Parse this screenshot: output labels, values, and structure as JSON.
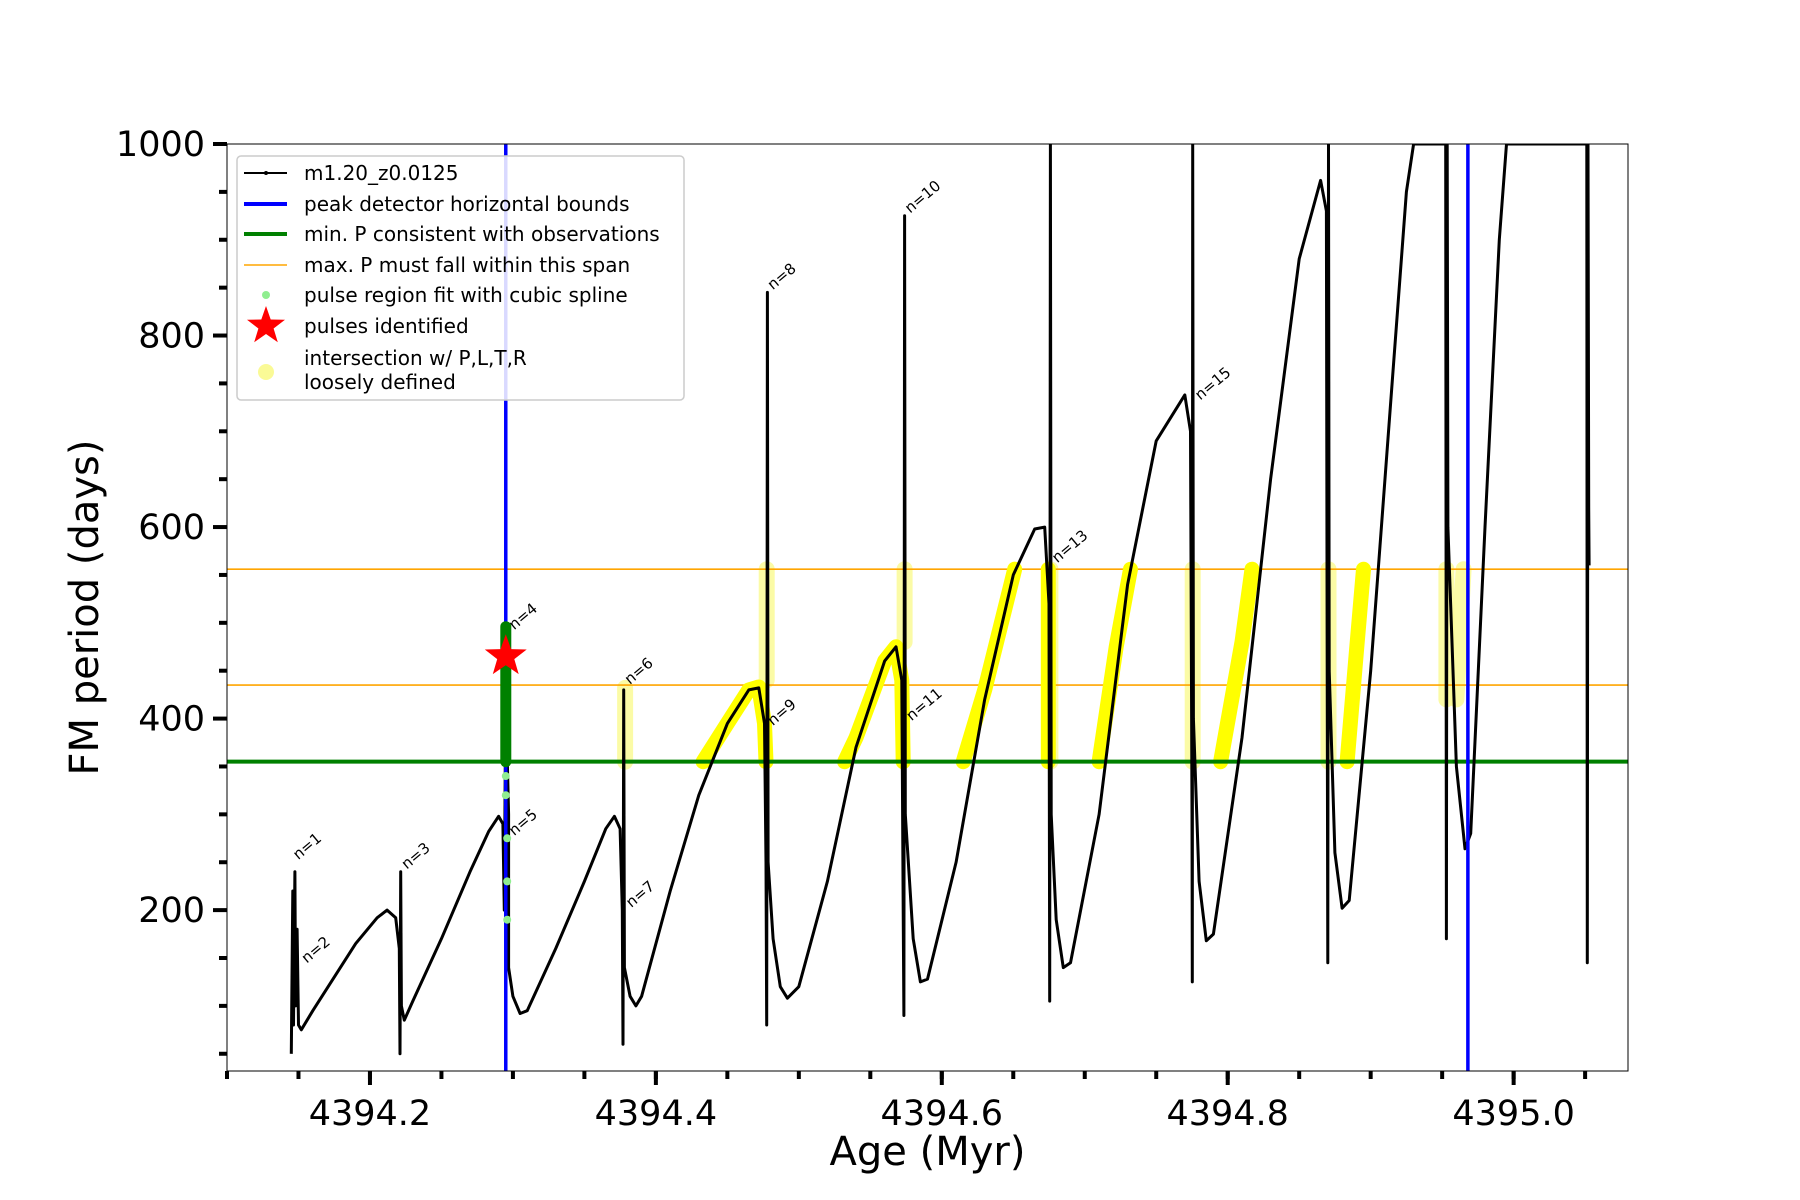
{
  "chart_data": {
    "type": "line",
    "xlabel": "Age (Myr)",
    "ylabel": "FM period (days)",
    "xlim": [
      4394.1,
      4395.08
    ],
    "ylim": [
      32,
      1000
    ],
    "x_ticks": [
      {
        "v": 4394.2,
        "label": "4394.2"
      },
      {
        "v": 4394.4,
        "label": "4394.4"
      },
      {
        "v": 4394.6,
        "label": "4394.6"
      },
      {
        "v": 4394.8,
        "label": "4394.8"
      },
      {
        "v": 4395.0,
        "label": "4395.0"
      }
    ],
    "y_ticks": [
      {
        "v": 200,
        "label": "200"
      },
      {
        "v": 400,
        "label": "400"
      },
      {
        "v": 600,
        "label": "600"
      },
      {
        "v": 800,
        "label": "800"
      },
      {
        "v": 1000,
        "label": "1000"
      }
    ],
    "x_minor_step": 0.05,
    "y_minor_step": 50,
    "legend_position": "top-left",
    "legend": [
      {
        "key": "track",
        "label": "m1.20_z0.0125"
      },
      {
        "key": "bounds",
        "label": "peak detector horizontal bounds"
      },
      {
        "key": "minP",
        "label": "min. P consistent with observations"
      },
      {
        "key": "maxP",
        "label": "max. P must fall within this span"
      },
      {
        "key": "spline",
        "label": "pulse region fit with cubic spline"
      },
      {
        "key": "pulses",
        "label": "pulses identified"
      },
      {
        "key": "intersect",
        "label": "intersection w/ P,L,T,R\nloosely defined"
      }
    ],
    "colors": {
      "track": "#000000",
      "bounds": "#0000ff",
      "minP": "#008000",
      "maxP": "#ffa500",
      "spline": "#90ee90",
      "pulses": "#ff0000",
      "intersect": "#ffff00",
      "intersect_loose": "#fafa96"
    },
    "vertical_bounds_x": [
      4394.295,
      4394.968
    ],
    "min_P": 355,
    "max_P_span": [
      435,
      556
    ],
    "track_points": [
      [
        4394.145,
        50
      ],
      [
        4394.146,
        220
      ],
      [
        4394.1465,
        80
      ],
      [
        4394.1475,
        240
      ],
      [
        4394.148,
        100
      ],
      [
        4394.149,
        180
      ],
      [
        4394.15,
        80
      ],
      [
        4394.152,
        75
      ],
      [
        4394.16,
        95
      ],
      [
        4394.175,
        130
      ],
      [
        4394.19,
        165
      ],
      [
        4394.205,
        192
      ],
      [
        4394.212,
        200
      ],
      [
        4394.218,
        192
      ],
      [
        4394.2205,
        160
      ],
      [
        4394.221,
        50
      ],
      [
        4394.2215,
        240
      ],
      [
        4394.222,
        100
      ],
      [
        4394.224,
        85
      ],
      [
        4394.23,
        105
      ],
      [
        4394.25,
        170
      ],
      [
        4394.27,
        240
      ],
      [
        4394.283,
        282
      ],
      [
        4394.29,
        298
      ],
      [
        4394.293,
        290
      ],
      [
        4394.294,
        200
      ],
      [
        4394.295,
        440
      ],
      [
        4394.2955,
        496
      ],
      [
        4394.296,
        360
      ],
      [
        4394.297,
        300
      ],
      [
        4394.297,
        140
      ],
      [
        4394.3,
        110
      ],
      [
        4394.305,
        92
      ],
      [
        4394.31,
        95
      ],
      [
        4394.33,
        160
      ],
      [
        4394.35,
        230
      ],
      [
        4394.365,
        285
      ],
      [
        4394.371,
        298
      ],
      [
        4394.375,
        285
      ],
      [
        4394.3765,
        200
      ],
      [
        4394.377,
        60
      ],
      [
        4394.3775,
        430
      ],
      [
        4394.378,
        140
      ],
      [
        4394.382,
        110
      ],
      [
        4394.386,
        100
      ],
      [
        4394.39,
        110
      ],
      [
        4394.41,
        220
      ],
      [
        4394.43,
        320
      ],
      [
        4394.45,
        395
      ],
      [
        4394.465,
        430
      ],
      [
        4394.472,
        432
      ],
      [
        4394.476,
        395
      ],
      [
        4394.477,
        250
      ],
      [
        4394.4775,
        80
      ],
      [
        4394.478,
        845
      ],
      [
        4394.4785,
        250
      ],
      [
        4394.482,
        170
      ],
      [
        4394.487,
        120
      ],
      [
        4394.492,
        108
      ],
      [
        4394.5,
        120
      ],
      [
        4394.52,
        230
      ],
      [
        4394.54,
        370
      ],
      [
        4394.56,
        460
      ],
      [
        4394.568,
        475
      ],
      [
        4394.572,
        440
      ],
      [
        4394.573,
        200
      ],
      [
        4394.5735,
        90
      ],
      [
        4394.574,
        925
      ],
      [
        4394.5745,
        300
      ],
      [
        4394.58,
        170
      ],
      [
        4394.585,
        125
      ],
      [
        4394.59,
        128
      ],
      [
        4394.61,
        250
      ],
      [
        4394.63,
        420
      ],
      [
        4394.65,
        550
      ],
      [
        4394.665,
        598
      ],
      [
        4394.672,
        600
      ],
      [
        4394.675,
        520
      ],
      [
        4394.6755,
        105
      ],
      [
        4394.676,
        1000
      ],
      [
        4394.6765,
        300
      ],
      [
        4394.68,
        190
      ],
      [
        4394.685,
        140
      ],
      [
        4394.69,
        145
      ],
      [
        4394.71,
        300
      ],
      [
        4394.73,
        540
      ],
      [
        4394.75,
        690
      ],
      [
        4394.77,
        738
      ],
      [
        4394.774,
        700
      ],
      [
        4394.775,
        300
      ],
      [
        4394.7752,
        125
      ],
      [
        4394.7755,
        1000
      ],
      [
        4394.776,
        400
      ],
      [
        4394.78,
        230
      ],
      [
        4394.785,
        168
      ],
      [
        4394.79,
        175
      ],
      [
        4394.81,
        380
      ],
      [
        4394.83,
        650
      ],
      [
        4394.85,
        880
      ],
      [
        4394.865,
        962
      ],
      [
        4394.869,
        930
      ],
      [
        4394.8695,
        500
      ],
      [
        4394.87,
        145
      ],
      [
        4394.8705,
        1000
      ],
      [
        4394.871,
        450
      ],
      [
        4394.875,
        260
      ],
      [
        4394.88,
        202
      ],
      [
        4394.885,
        210
      ],
      [
        4394.9,
        450
      ],
      [
        4394.915,
        750
      ],
      [
        4394.925,
        950
      ],
      [
        4394.93,
        1000
      ],
      [
        4394.9525,
        1000
      ],
      [
        4394.953,
        170
      ],
      [
        4394.9535,
        1000
      ],
      [
        4394.954,
        600
      ],
      [
        4394.96,
        350
      ],
      [
        4394.966,
        264
      ],
      [
        4394.97,
        280
      ],
      [
        4394.98,
        600
      ],
      [
        4394.99,
        900
      ],
      [
        4394.995,
        1000
      ],
      [
        4395.0512,
        1000
      ],
      [
        4395.0515,
        145
      ],
      [
        4395.052,
        1000
      ],
      [
        4395.0525,
        620
      ],
      [
        4395.0528,
        560
      ]
    ],
    "n_labels": [
      {
        "x": 4394.147,
        "y": 250,
        "label": "n=1"
      },
      {
        "x": 4394.153,
        "y": 142,
        "label": "n=2"
      },
      {
        "x": 4394.223,
        "y": 240,
        "label": "n=3"
      },
      {
        "x": 4394.298,
        "y": 490,
        "label": "n=4"
      },
      {
        "x": 4394.298,
        "y": 275,
        "label": "n=5"
      },
      {
        "x": 4394.379,
        "y": 433,
        "label": "n=6"
      },
      {
        "x": 4394.38,
        "y": 200,
        "label": "n=7"
      },
      {
        "x": 4394.479,
        "y": 845,
        "label": "n=8"
      },
      {
        "x": 4394.479,
        "y": 390,
        "label": "n=9"
      },
      {
        "x": 4394.575,
        "y": 925,
        "label": "n=10"
      },
      {
        "x": 4394.576,
        "y": 395,
        "label": "n=11"
      },
      {
        "x": 4394.678,
        "y": 560,
        "label": "n=13"
      },
      {
        "x": 4394.778,
        "y": 730,
        "label": "n=15"
      }
    ],
    "yellow_segments": [
      [
        [
          4394.433,
          355
        ],
        [
          4394.45,
          395
        ],
        [
          4394.465,
          430
        ],
        [
          4394.472,
          433
        ],
        [
          4394.476,
          395
        ],
        [
          4394.477,
          355
        ]
      ],
      [
        [
          4394.532,
          355
        ],
        [
          4394.54,
          380
        ],
        [
          4394.56,
          460
        ],
        [
          4394.568,
          475
        ],
        [
          4394.572,
          440
        ],
        [
          4394.573,
          355
        ]
      ],
      [
        [
          4394.615,
          355
        ],
        [
          4394.63,
          430
        ],
        [
          4394.65,
          550
        ],
        [
          4394.651,
          556
        ]
      ],
      [
        [
          4394.6745,
          355
        ],
        [
          4394.6745,
          556
        ]
      ],
      [
        [
          4394.71,
          355
        ],
        [
          4394.722,
          475
        ],
        [
          4394.732,
          556
        ]
      ],
      [
        [
          4394.795,
          355
        ],
        [
          4394.81,
          480
        ],
        [
          4394.817,
          556
        ]
      ],
      [
        [
          4394.8835,
          355
        ],
        [
          4394.89,
          470
        ],
        [
          4394.895,
          556
        ]
      ]
    ],
    "loose_segments": [
      [
        [
          4394.3785,
          355
        ],
        [
          4394.3785,
          432
        ]
      ],
      [
        [
          4394.4775,
          440
        ],
        [
          4394.4775,
          556
        ]
      ],
      [
        [
          4394.574,
          480
        ],
        [
          4394.574,
          556
        ]
      ],
      [
        [
          4394.676,
          355
        ],
        [
          4394.676,
          556
        ]
      ],
      [
        [
          4394.7755,
          355
        ],
        [
          4394.7755,
          556
        ]
      ],
      [
        [
          4394.8705,
          355
        ],
        [
          4394.8705,
          556
        ]
      ],
      [
        [
          4394.953,
          420
        ],
        [
          4394.953,
          556
        ]
      ],
      [
        [
          4394.96,
          420
        ],
        [
          4394.965,
          556
        ]
      ]
    ],
    "green_segment": [
      [
        4394.295,
        355
      ],
      [
        4394.295,
        496
      ]
    ],
    "spline_points": [
      [
        4394.295,
        320
      ],
      [
        4394.295,
        340
      ],
      [
        4394.296,
        275
      ],
      [
        4394.296,
        230
      ],
      [
        4394.296,
        190
      ]
    ],
    "pulse_star": {
      "x": 4394.295,
      "y": 465
    }
  }
}
